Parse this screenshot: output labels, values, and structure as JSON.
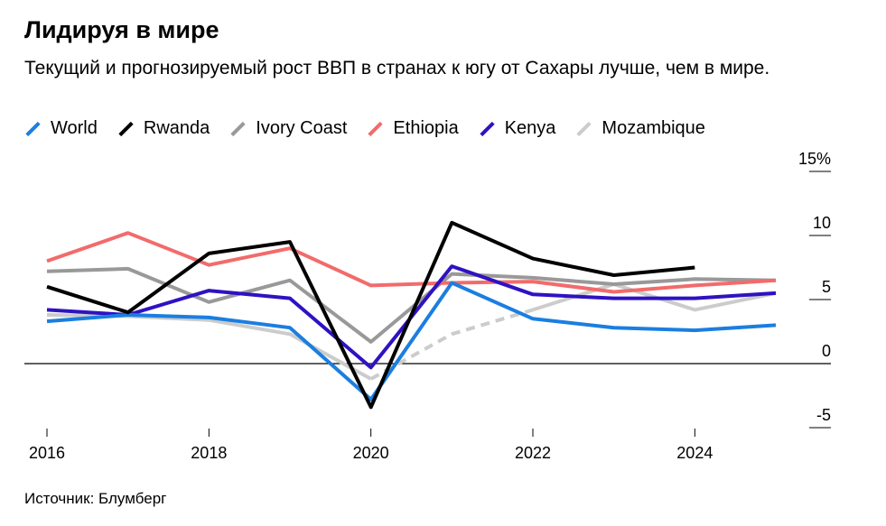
{
  "header": {
    "title": "Лидируя в мире",
    "subtitle": "Текущий и прогнозируемый рост ВВП в странах к югу от Сахары лучше, чем в мире."
  },
  "footer": {
    "source": "Источник: Блумберг"
  },
  "chart_data": {
    "type": "line",
    "title": "Лидируя в мире",
    "subtitle": "Текущий и прогнозируемый рост ВВП в странах к югу от Сахары лучше, чем в мире.",
    "xlabel": "",
    "ylabel": "",
    "x": [
      2016,
      2017,
      2018,
      2019,
      2020,
      2021,
      2022,
      2023,
      2024,
      2025
    ],
    "xlim": [
      2016,
      2025
    ],
    "ylim": [
      -5,
      15
    ],
    "x_ticks": [
      "2016",
      "2018",
      "2020",
      "2022",
      "2024"
    ],
    "x_tick_values": [
      2016,
      2018,
      2020,
      2022,
      2024
    ],
    "y_ticks": [
      "15%",
      "10",
      "5",
      "0",
      "-5"
    ],
    "y_tick_values": [
      15,
      10,
      5,
      0,
      -5
    ],
    "legend_position": "top",
    "grid": false,
    "series": [
      {
        "name": "World",
        "color": "#1b7ee0",
        "values": [
          3.3,
          3.8,
          3.6,
          2.8,
          -2.8,
          6.3,
          3.5,
          2.8,
          2.6,
          3.0
        ]
      },
      {
        "name": "Rwanda",
        "color": "#000000",
        "values": [
          6.0,
          4.0,
          8.6,
          9.5,
          -3.4,
          11.0,
          8.2,
          6.9,
          7.5,
          null
        ]
      },
      {
        "name": "Ivory Coast",
        "color": "#999999",
        "values": [
          7.2,
          7.4,
          4.8,
          6.5,
          1.7,
          7.0,
          6.7,
          6.2,
          6.6,
          6.5
        ]
      },
      {
        "name": "Ethiopia",
        "color": "#f26b6b",
        "values": [
          8.0,
          10.2,
          7.7,
          9.0,
          6.1,
          6.3,
          6.4,
          5.6,
          6.1,
          6.5
        ]
      },
      {
        "name": "Kenya",
        "color": "#2e12c2",
        "values": [
          4.2,
          3.8,
          5.7,
          5.1,
          -0.3,
          7.6,
          5.4,
          5.1,
          5.1,
          5.5
        ]
      },
      {
        "name": "Mozambique",
        "color": "#cccccc",
        "values": [
          3.8,
          3.7,
          3.4,
          2.3,
          -1.2,
          2.3,
          4.2,
          6.2,
          4.2,
          5.5
        ],
        "dashed_range": [
          2020,
          2022
        ]
      }
    ]
  }
}
